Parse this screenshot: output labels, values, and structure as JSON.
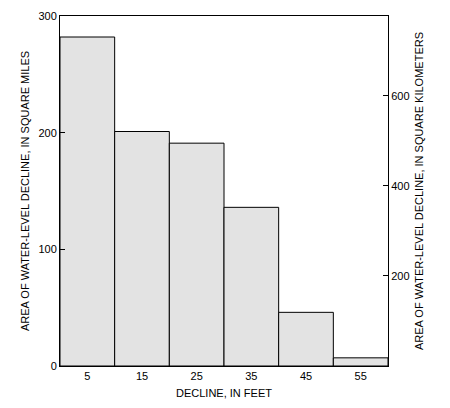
{
  "chart_data": {
    "type": "histogram",
    "xlabel": "DECLINE, IN FEET",
    "ylabel": "AREA OF WATER-LEVEL DECLINE, IN SQUARE MILES",
    "y2label": "AREA OF WATER-LEVEL DECLINE, IN SQUARE KILOMETERS",
    "bins": [
      0,
      10,
      20,
      30,
      40,
      50,
      60
    ],
    "values": [
      282,
      201,
      191,
      136,
      46,
      7
    ],
    "color": "#e3e3e3",
    "xlim": [
      0,
      60
    ],
    "xticks": [
      5,
      15,
      25,
      35,
      45,
      55
    ],
    "ylim": [
      0,
      300
    ],
    "yticks": [
      0,
      100,
      200,
      300
    ],
    "y2lim": [
      0,
      777
    ],
    "y2ticks": [
      200,
      400,
      600
    ],
    "grid": false
  }
}
